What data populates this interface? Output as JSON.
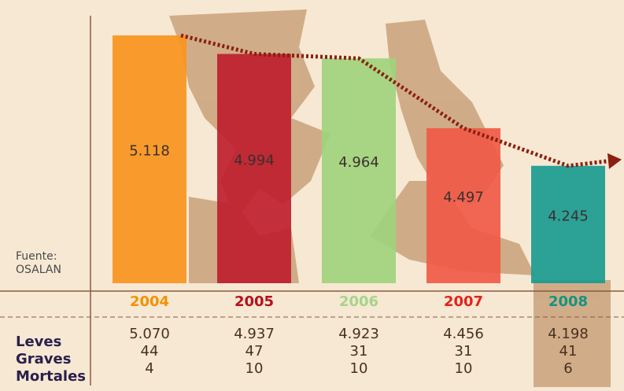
{
  "chart_data": {
    "type": "bar",
    "categories": [
      "2004",
      "2005",
      "2006",
      "2007",
      "2008"
    ],
    "values": [
      5118,
      4994,
      4964,
      4497,
      4245
    ],
    "value_labels": [
      "5.118",
      "4.994",
      "4.964",
      "4.497",
      "4.245"
    ],
    "colors": [
      "#f7941d",
      "#be1e2d",
      "#9fd27c",
      "#f05a47",
      "#1a9a8f"
    ],
    "category_colors": [
      "#f39200",
      "#b5121b",
      "#a6d48a",
      "#e2231a",
      "#16937f"
    ],
    "source": [
      "Fuente:",
      "OSALAN"
    ],
    "table": {
      "row_labels": [
        "Leves",
        "Graves",
        "Mortales"
      ],
      "rows": [
        [
          "5.070",
          "4.937",
          "4.923",
          "4.456",
          "4.198"
        ],
        [
          "44",
          "47",
          "31",
          "31",
          "41"
        ],
        [
          "4",
          "10",
          "10",
          "10",
          "6"
        ]
      ]
    }
  }
}
